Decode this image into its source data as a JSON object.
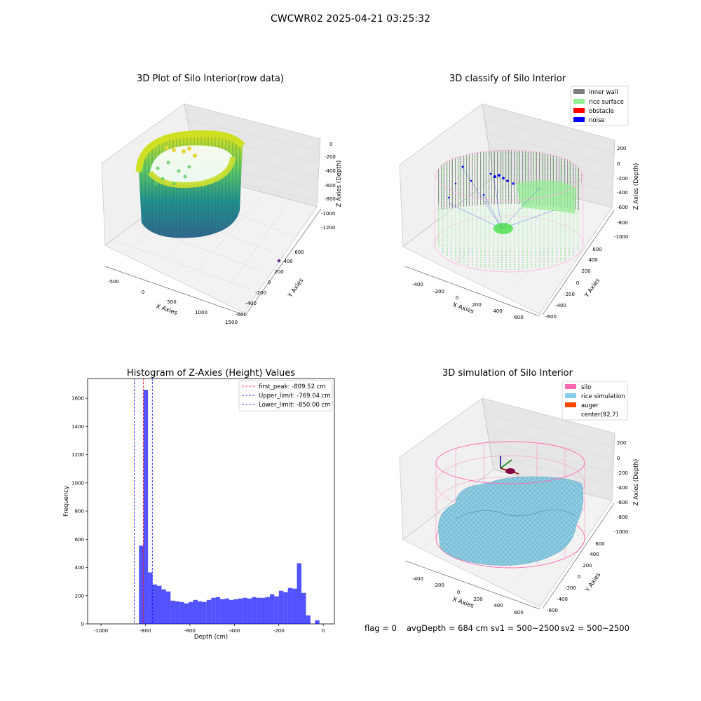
{
  "suptitle": "CWCWR02 2025-04-21 03:25:32",
  "colors": {
    "inner_wall": "#808080",
    "rice_surface": "#90ee90",
    "obstacle": "#ff0000",
    "noise": "#0000ff",
    "silo": "#ff69b4",
    "rice_simulation": "#87ceeb",
    "auger": "#ff4500",
    "hist_bar": "#0000ff"
  },
  "panels": {
    "raw": {
      "title": "3D Plot of Silo Interior(row data)",
      "xlabel": "X Axies",
      "ylabel": "Y Axies",
      "zlabel": "Z Axies (Depth)",
      "xticks": [
        "-500",
        "0",
        "500",
        "1000",
        "1500"
      ],
      "yticks": [
        "-600",
        "-400",
        "-200",
        "0",
        "200",
        "400",
        "600"
      ],
      "zticks": [
        "0",
        "-200",
        "-400",
        "-600",
        "-800",
        "-1000",
        "-1200"
      ]
    },
    "classify": {
      "title": "3D classify of Silo Interior",
      "xlabel": "X Axies",
      "ylabel": "Y Axies",
      "zlabel": "Z Axies (Depth)",
      "xticks": [
        "-400",
        "-200",
        "0",
        "200",
        "400",
        "600"
      ],
      "yticks": [
        "-600",
        "-400",
        "-200",
        "0",
        "200",
        "400",
        "600"
      ],
      "zticks": [
        "200",
        "0",
        "-200",
        "-400",
        "-600",
        "-800",
        "-1000"
      ],
      "legend": [
        "inner wall",
        "rice surface",
        "obstacle",
        "noise"
      ]
    },
    "simulation": {
      "title": "3D simulation of Silo Interior",
      "xlabel": "X Axies",
      "ylabel": "Y Axies",
      "zlabel": "Z Axies (Depth)",
      "xticks": [
        "-400",
        "-200",
        "0",
        "200",
        "400",
        "600"
      ],
      "yticks": [
        "-600",
        "-400",
        "-200",
        "0",
        "200",
        "400",
        "600"
      ],
      "zticks": [
        "200",
        "0",
        "-200",
        "-400",
        "-600",
        "-800",
        "-1000"
      ],
      "legend": [
        "silo",
        "rice simulation",
        "auger",
        "center(92,7)"
      ]
    }
  },
  "info": {
    "flag": "flag = 0",
    "avg": "avgDepth = 684 cm",
    "sv1": "sv1 = 500~2500",
    "sv2": "sv2 = 500~2500"
  },
  "chart_data": {
    "type": "bar",
    "title": "Histogram of Z-Axies (Height) Values",
    "xlabel": "Depth (cm)",
    "ylabel": "Frequency",
    "xlim": [
      -1060,
      50
    ],
    "ylim": [
      0,
      1740
    ],
    "xticks": [
      -1000,
      -800,
      -600,
      -400,
      -200,
      0
    ],
    "yticks": [
      0,
      200,
      400,
      600,
      800,
      1000,
      1200,
      1400,
      1600
    ],
    "bin_width": 20.3,
    "bin_starts": [
      -829,
      -808.7,
      -788.4,
      -768.1,
      -747.8,
      -727.5,
      -707.2,
      -686.9,
      -666.6,
      -646.3,
      -626,
      -605.7,
      -585.4,
      -565.1,
      -544.8,
      -524.5,
      -504.2,
      -483.9,
      -463.6,
      -443.3,
      -423,
      -402.7,
      -382.4,
      -362.1,
      -341.8,
      -321.5,
      -301.2,
      -280.9,
      -260.6,
      -240.3,
      -220,
      -199.7,
      -179.4,
      -159.1,
      -138.8,
      -118.5,
      -98.2,
      -77.9,
      -57.6,
      -37.3,
      -17,
      3.3
    ],
    "values": [
      555,
      1660,
      365,
      280,
      270,
      245,
      230,
      165,
      160,
      155,
      145,
      155,
      170,
      160,
      155,
      170,
      185,
      190,
      175,
      180,
      170,
      175,
      180,
      185,
      180,
      190,
      185,
      185,
      190,
      210,
      195,
      235,
      225,
      255,
      250,
      430,
      220,
      60,
      0,
      25,
      0,
      0
    ],
    "lines": [
      {
        "label": "first_peak: -809.52 cm",
        "x": -809.52,
        "color": "#ff0000"
      },
      {
        "label": "Upper_limit: -769.04 cm",
        "x": -769.04,
        "color": "#0000ff"
      },
      {
        "label": "Lower_limit: -850.00 cm",
        "x": -850.0,
        "color": "#0000ff"
      }
    ],
    "legend_position": "upper right"
  }
}
